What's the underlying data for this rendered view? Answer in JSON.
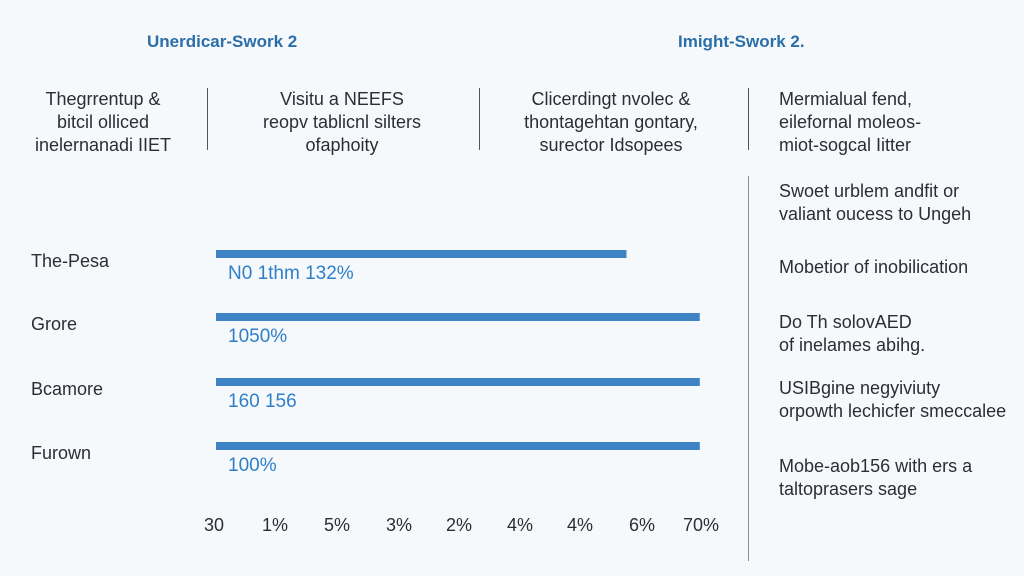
{
  "headers": {
    "left": "Unerdicar-Swork 2",
    "right": "Imight-Swork 2."
  },
  "columns": [
    "Thegrrentup &\nbitcil olliced\ninelernanadi IIET",
    "Visitu a NEEFS\nreopv tablicnl silters\nofaphoity",
    "Clicerdingt nvolec &\nthontagehtan gontary,\nsurector Idsopees"
  ],
  "right_notes": [
    "Mermialual fend,\neilefornal moleos-\nmiot-sogcal Iitter",
    "Swoet urblem andfit or\nvaliant oucess to Ungeh",
    "Mobetior of inobilication",
    "Do Th solovAED\nof inelames abihg.",
    "USIBgine negyiviuty\norpowth lechicfer smeccalee",
    "Mobe-aob156 with ers a\ntaltoprasers sage"
  ],
  "chart_data": {
    "type": "bar",
    "orientation": "horizontal",
    "categories": [
      "The-Pesa",
      "Grore",
      "Bcamore",
      "Furown"
    ],
    "values": [
      0.56,
      0.66,
      0.66,
      0.66
    ],
    "data_labels": [
      "N0 1thm 132%",
      "1050%",
      "160 156",
      "100%"
    ],
    "x_tick_labels": [
      "30",
      "1%",
      "5%",
      "3%",
      "2%",
      "4%",
      "4%",
      "6%",
      "70%"
    ],
    "bar_color": "#3d83c6",
    "label_color": "#2f7fc8"
  }
}
